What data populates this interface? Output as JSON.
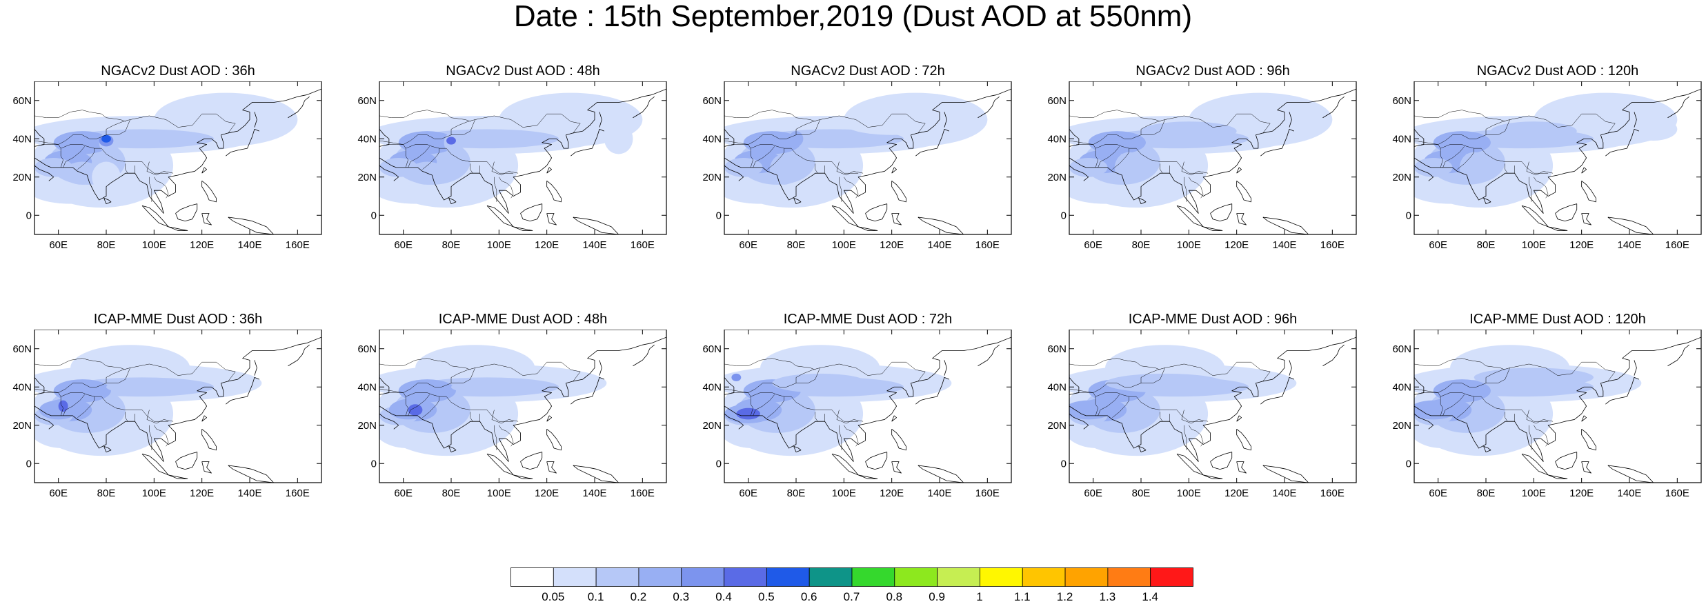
{
  "title": "Date : 15th September,2019 (Dust AOD at 550nm)",
  "panels": [
    {
      "title": "NGACv2 Dust AOD : 36h",
      "model": "NGACv2",
      "lead": "36h",
      "row": 0,
      "col": 0,
      "hotspots": [
        [
          80,
          38,
          3,
          5,
          2,
          "1.0"
        ],
        [
          80,
          39,
          3,
          3,
          4,
          "1.0"
        ],
        [
          80,
          40,
          2,
          2,
          6,
          "0.9"
        ]
      ],
      "extra": [
        [
          70,
          22,
          8,
          6,
          2
        ],
        [
          80,
          20,
          6,
          8,
          1
        ]
      ]
    },
    {
      "title": "NGACv2 Dust AOD : 48h",
      "model": "NGACv2",
      "lead": "48h",
      "row": 0,
      "col": 1,
      "hotspots": [
        [
          80,
          38,
          3,
          5,
          2,
          "1.0"
        ],
        [
          80,
          39,
          2,
          2,
          5,
          "1.0"
        ]
      ],
      "extra": [
        [
          70,
          22,
          8,
          6,
          2
        ],
        [
          150,
          40,
          6,
          8,
          1
        ]
      ]
    },
    {
      "title": "NGACv2 Dust AOD : 72h",
      "model": "NGACv2",
      "lead": "72h",
      "row": 0,
      "col": 2,
      "hotspots": [
        [
          80,
          40,
          3,
          4,
          3,
          "1.0"
        ]
      ],
      "extra": [
        [
          75,
          24,
          6,
          8,
          2
        ],
        [
          120,
          48,
          20,
          6,
          1
        ]
      ]
    },
    {
      "title": "NGACv2 Dust AOD : 96h",
      "model": "NGACv2",
      "lead": "96h",
      "row": 0,
      "col": 3,
      "hotspots": [],
      "extra": [
        [
          75,
          25,
          6,
          8,
          2
        ],
        [
          100,
          44,
          20,
          5,
          2
        ],
        [
          130,
          52,
          18,
          5,
          1
        ]
      ]
    },
    {
      "title": "NGACv2 Dust AOD : 120h",
      "model": "NGACv2",
      "lead": "120h",
      "row": 0,
      "col": 4,
      "hotspots": [],
      "extra": [
        [
          75,
          25,
          6,
          8,
          2
        ],
        [
          100,
          44,
          18,
          5,
          2
        ],
        [
          150,
          45,
          10,
          6,
          1
        ]
      ]
    },
    {
      "title": "ICAP-MME Dust AOD : 36h",
      "model": "ICAP-MME",
      "lead": "36h",
      "row": 1,
      "col": 0,
      "hotspots": [
        [
          62,
          30,
          2,
          3,
          5,
          "1.0"
        ]
      ],
      "extra": [
        [
          60,
          28,
          8,
          5,
          3
        ],
        [
          100,
          40,
          20,
          4,
          2
        ]
      ]
    },
    {
      "title": "ICAP-MME Dust AOD : 48h",
      "model": "ICAP-MME",
      "lead": "48h",
      "row": 1,
      "col": 1,
      "hotspots": [
        [
          65,
          28,
          3,
          3,
          5,
          "1.0"
        ]
      ],
      "extra": [
        [
          62,
          28,
          8,
          5,
          3
        ],
        [
          100,
          40,
          20,
          4,
          2
        ]
      ]
    },
    {
      "title": "ICAP-MME Dust AOD : 72h",
      "model": "ICAP-MME",
      "lead": "72h",
      "row": 1,
      "col": 2,
      "hotspots": [
        [
          55,
          45,
          2,
          2,
          4,
          "1.0"
        ],
        [
          60,
          26,
          5,
          3,
          5,
          "1.0"
        ]
      ],
      "extra": [
        [
          60,
          26,
          10,
          5,
          3
        ],
        [
          90,
          42,
          20,
          5,
          2
        ]
      ]
    },
    {
      "title": "ICAP-MME Dust AOD : 96h",
      "model": "ICAP-MME",
      "lead": "96h",
      "row": 1,
      "col": 3,
      "hotspots": [],
      "extra": [
        [
          58,
          28,
          10,
          5,
          3
        ],
        [
          90,
          42,
          25,
          5,
          2
        ]
      ]
    },
    {
      "title": "ICAP-MME Dust AOD : 120h",
      "model": "ICAP-MME",
      "lead": "120h",
      "row": 1,
      "col": 4,
      "hotspots": [],
      "extra": [
        [
          58,
          28,
          10,
          5,
          3
        ],
        [
          100,
          45,
          25,
          5,
          2
        ]
      ]
    }
  ],
  "axes": {
    "lon_range": [
      50,
      170
    ],
    "lat_range": [
      -10,
      70
    ],
    "x_ticks": [
      60,
      80,
      100,
      120,
      140,
      160
    ],
    "x_tick_labels": [
      "60E",
      "80E",
      "100E",
      "120E",
      "140E",
      "160E"
    ],
    "y_ticks": [
      0,
      20,
      40,
      60
    ],
    "y_tick_labels": [
      "0",
      "20N",
      "40N",
      "60N"
    ]
  },
  "colorbar": {
    "labels": [
      "0.05",
      "0.1",
      "0.2",
      "0.3",
      "0.4",
      "0.5",
      "0.6",
      "0.7",
      "0.8",
      "0.9",
      "1",
      "1.1",
      "1.2",
      "1.3",
      "1.4"
    ],
    "colors": [
      "#ffffff",
      "#d4e0fb",
      "#b6c8f7",
      "#98aff3",
      "#7c94ee",
      "#5a6be6",
      "#1f5ae8",
      "#0e9488",
      "#35d82d",
      "#8de81e",
      "#c6ee52",
      "#fff700",
      "#ffc500",
      "#ffa300",
      "#ff7c14",
      "#ff1818"
    ]
  }
}
